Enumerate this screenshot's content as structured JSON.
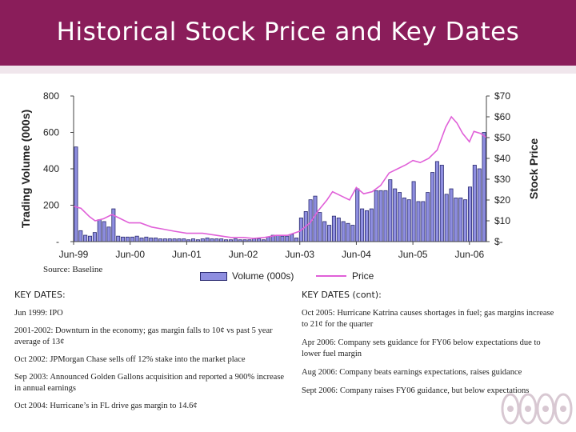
{
  "slide": {
    "title": "Historical Stock Price and Key Dates",
    "source": "Source: Baseline"
  },
  "colors": {
    "brand": "#8a1d5a",
    "volume_fill": "#8e8ee0",
    "volume_stroke": "#2a2a70",
    "price_line": "#e060d8"
  },
  "legend": {
    "volume": "Volume (000s)",
    "price": "Price"
  },
  "chart_data": {
    "type": "bar",
    "title": "",
    "ylabel": "Trading Volume (000s)",
    "y2label": "Stock Price",
    "ylim": [
      0,
      800
    ],
    "y2lim": [
      0,
      70
    ],
    "y_ticks": [
      "-",
      "200",
      "400",
      "600",
      "800"
    ],
    "y2_ticks": [
      "$-",
      "$10",
      "$20",
      "$30",
      "$40",
      "$50",
      "$60",
      "$70"
    ],
    "x_ticks": [
      {
        "label": "Jun-99",
        "t": 1999.42
      },
      {
        "label": "Jun-00",
        "t": 2000.42
      },
      {
        "label": "Jun-01",
        "t": 2001.42
      },
      {
        "label": "Jun-02",
        "t": 2002.42
      },
      {
        "label": "Jun-03",
        "t": 2003.42
      },
      {
        "label": "Jun-04",
        "t": 2004.42
      },
      {
        "label": "Jun-05",
        "t": 2005.42
      },
      {
        "label": "Jun-06",
        "t": 2006.42
      }
    ],
    "xlim": [
      1999.42,
      2006.72
    ],
    "grid": false,
    "legend_position": "bottom",
    "series": [
      {
        "name": "Volume (000s)",
        "type": "bar",
        "values": [
          520,
          60,
          35,
          30,
          50,
          120,
          110,
          80,
          180,
          30,
          25,
          25,
          25,
          30,
          20,
          25,
          20,
          20,
          15,
          15,
          15,
          15,
          15,
          15,
          10,
          15,
          10,
          15,
          20,
          15,
          15,
          15,
          10,
          10,
          15,
          10,
          10,
          10,
          15,
          15,
          10,
          25,
          35,
          35,
          30,
          30,
          40,
          20,
          130,
          165,
          230,
          250,
          160,
          110,
          90,
          140,
          130,
          110,
          100,
          90,
          290,
          180,
          170,
          180,
          280,
          280,
          280,
          340,
          290,
          270,
          240,
          230,
          330,
          220,
          220,
          270,
          380,
          440,
          420,
          260,
          290,
          240,
          240,
          230,
          300,
          420,
          400,
          600
        ]
      },
      {
        "name": "Price",
        "type": "line",
        "points": [
          [
            1999.42,
            17
          ],
          [
            1999.55,
            16
          ],
          [
            1999.7,
            12
          ],
          [
            1999.8,
            10
          ],
          [
            1999.95,
            11
          ],
          [
            2000.1,
            13
          ],
          [
            2000.25,
            11
          ],
          [
            2000.4,
            9
          ],
          [
            2000.6,
            9
          ],
          [
            2000.8,
            7
          ],
          [
            2001.0,
            6
          ],
          [
            2001.2,
            5
          ],
          [
            2001.42,
            4
          ],
          [
            2001.7,
            4
          ],
          [
            2001.95,
            3
          ],
          [
            2002.2,
            2
          ],
          [
            2002.42,
            2
          ],
          [
            2002.6,
            1.5
          ],
          [
            2002.8,
            2
          ],
          [
            2003.0,
            3
          ],
          [
            2003.2,
            3
          ],
          [
            2003.42,
            5
          ],
          [
            2003.6,
            9
          ],
          [
            2003.75,
            15
          ],
          [
            2003.9,
            20
          ],
          [
            2004.0,
            24
          ],
          [
            2004.15,
            22
          ],
          [
            2004.3,
            20
          ],
          [
            2004.42,
            26
          ],
          [
            2004.55,
            23
          ],
          [
            2004.7,
            24
          ],
          [
            2004.85,
            27
          ],
          [
            2005.0,
            33
          ],
          [
            2005.15,
            35
          ],
          [
            2005.3,
            37
          ],
          [
            2005.42,
            39
          ],
          [
            2005.55,
            38
          ],
          [
            2005.7,
            40
          ],
          [
            2005.85,
            44
          ],
          [
            2006.0,
            55
          ],
          [
            2006.1,
            60
          ],
          [
            2006.2,
            57
          ],
          [
            2006.3,
            52
          ],
          [
            2006.42,
            48
          ],
          [
            2006.5,
            53
          ],
          [
            2006.62,
            52
          ],
          [
            2006.72,
            50
          ]
        ]
      }
    ]
  },
  "key_dates_left": {
    "heading": "KEY DATES:",
    "items": [
      "Jun 1999: IPO",
      "2001-2002: Downturn in the economy; gas margin falls to 10¢ vs past 5 year average of 13¢",
      "Oct 2002: JPMorgan Chase sells off 12% stake into the market place",
      "Sep 2003: Announced Golden Gallons acquisition and reported a 900% increase in annual earnings",
      "Oct 2004: Hurricane’s in FL drive gas margin to 14.6¢"
    ]
  },
  "key_dates_right": {
    "heading": "KEY DATES (cont):",
    "items": [
      "Oct 2005: Hurricane Katrina causes shortages in fuel; gas margins increase to 21¢  for the quarter",
      "Apr 2006: Company sets guidance for FY06 below expectations due to lower fuel margin",
      "Aug 2006: Company beats earnings expectations, raises guidance",
      "Sept 2006: Company raises FY06 guidance, but below expectations"
    ]
  }
}
